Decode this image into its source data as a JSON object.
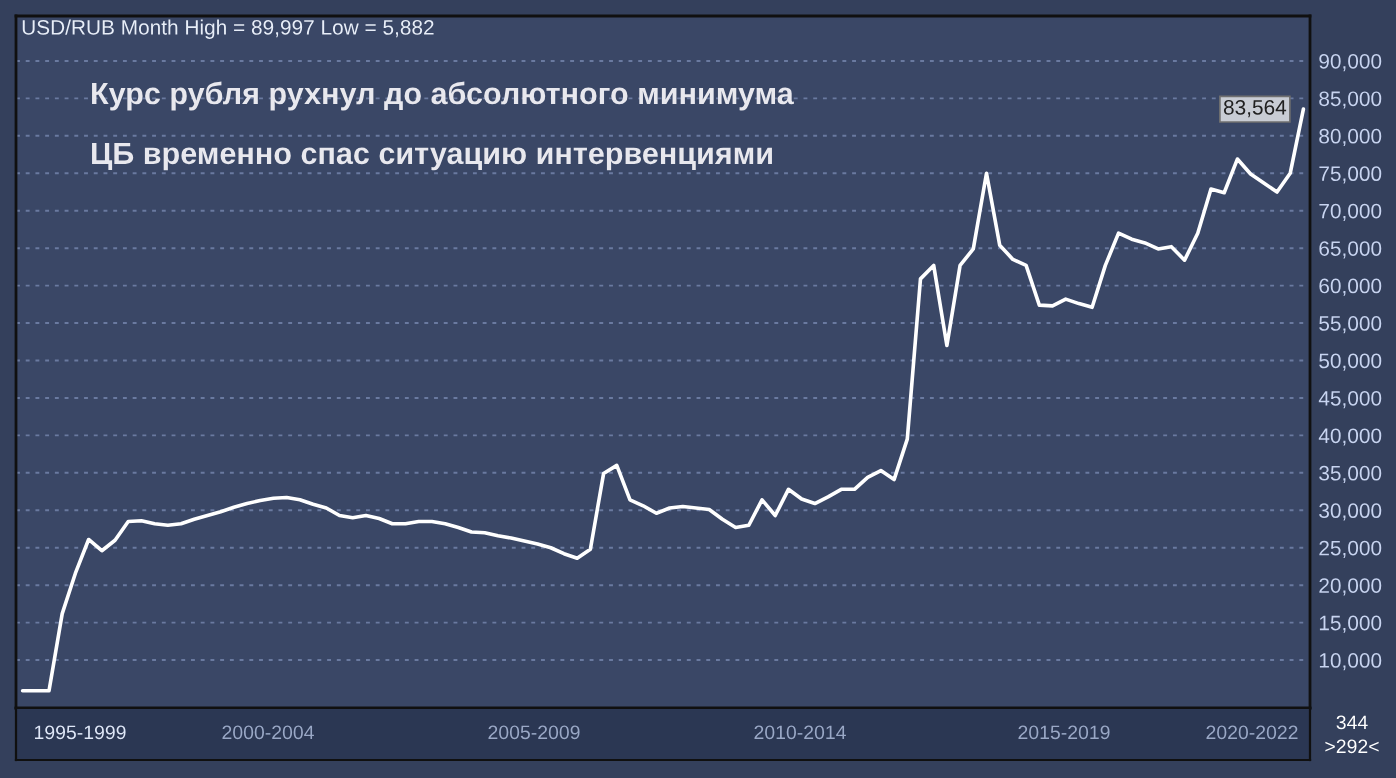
{
  "chart_data": {
    "type": "line",
    "title": "USD/RUB Month High = 89,997 Low = 5,882",
    "categories": [
      null,
      null,
      null,
      null,
      null,
      null,
      null,
      null,
      null,
      null,
      null,
      null,
      null,
      null,
      null,
      null,
      null,
      null,
      null,
      null,
      null,
      null,
      null,
      null,
      null,
      null,
      null,
      null,
      null,
      null,
      null,
      null,
      null,
      null,
      null,
      null,
      null,
      null,
      null,
      null,
      null,
      null,
      null,
      null,
      null,
      null,
      null,
      null,
      null,
      null,
      null,
      null,
      null,
      null,
      null,
      null,
      null,
      null,
      null,
      null,
      null,
      null,
      null,
      null,
      null,
      null,
      null,
      null,
      null,
      null,
      null,
      null,
      null,
      null,
      null,
      null,
      null,
      null,
      null,
      null,
      null,
      null,
      null,
      null,
      null,
      null,
      null,
      null,
      null,
      null,
      null,
      null,
      null,
      null,
      null,
      null,
      null,
      null
    ],
    "series": [
      {
        "color": "#ffffff",
        "values": [
          5900,
          5900,
          5900,
          16200,
          21600,
          26100,
          24600,
          26000,
          28500,
          28600,
          28200,
          28000,
          28200,
          28800,
          29300,
          29800,
          30400,
          30900,
          31300,
          31600,
          31700,
          31400,
          30800,
          30300,
          29300,
          29000,
          29300,
          28900,
          28200,
          28200,
          28500,
          28500,
          28200,
          27700,
          27100,
          27000,
          26600,
          26300,
          25900,
          25500,
          25000,
          24200,
          23600,
          24800,
          34900,
          36000,
          31400,
          30600,
          29600,
          30300,
          30500,
          30300,
          30100,
          28800,
          27700,
          28000,
          31400,
          29300,
          32800,
          31500,
          30900,
          31800,
          32800,
          32800,
          34400,
          35300,
          34100,
          39500,
          60900,
          62700,
          52000,
          62700,
          64900,
          75000,
          65400,
          63500,
          62700,
          57400,
          57300,
          58200,
          57600,
          57100,
          62700,
          67000,
          66200,
          65700,
          64900,
          65200,
          63400,
          67000,
          72900,
          72400,
          76900,
          74900,
          73700,
          72500,
          75000,
          83564
        ]
      }
    ],
    "ylim": [
      3600,
      96000
    ],
    "yticks": [
      {
        "value": 10000,
        "label": "10,000"
      },
      {
        "value": 15000,
        "label": "15,000"
      },
      {
        "value": 20000,
        "label": "20,000"
      },
      {
        "value": 25000,
        "label": "25,000"
      },
      {
        "value": 30000,
        "label": "30,000"
      },
      {
        "value": 35000,
        "label": "35,000"
      },
      {
        "value": 40000,
        "label": "40,000"
      },
      {
        "value": 45000,
        "label": "45,000"
      },
      {
        "value": 50000,
        "label": "50,000"
      },
      {
        "value": 55000,
        "label": "55,000"
      },
      {
        "value": 60000,
        "label": "60,000"
      },
      {
        "value": 65000,
        "label": "65,000"
      },
      {
        "value": 70000,
        "label": "70,000"
      },
      {
        "value": 75000,
        "label": "75,000"
      },
      {
        "value": 80000,
        "label": "80,000"
      },
      {
        "value": 85000,
        "label": "85,000"
      },
      {
        "value": 90000,
        "label": "90,000"
      }
    ],
    "tick_labels": "y",
    "grid": "y",
    "marker": "none",
    "line_style": "solid",
    "annotations": [
      "Курс рубля рухнул до абсолютного минимума",
      "ЦБ временно спас ситуацию интервенциями",
      "1995-1999",
      "2000-2004",
      "2005-2009",
      "2010-2014",
      "2015-2019",
      "2020-2022",
      "344",
      ">292<",
      "83,564"
    ]
  }
}
